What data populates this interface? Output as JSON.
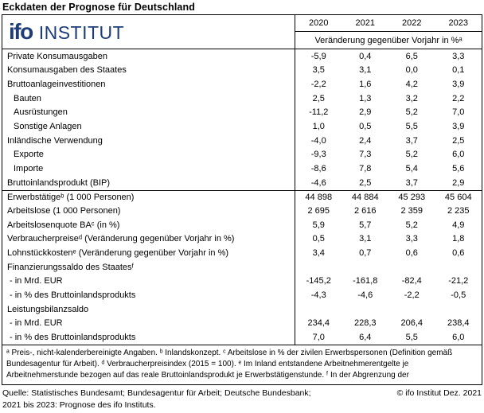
{
  "title": "Eckdaten der Prognose für Deutschland",
  "logo": {
    "brand": "ifo",
    "suffix": "INSTITUT"
  },
  "colors": {
    "logo_blue": "#1e3c78",
    "border": "#000000",
    "text": "#000000"
  },
  "table": {
    "years": [
      "2020",
      "2021",
      "2022",
      "2023"
    ],
    "unit_header": "Veränderung gegenüber Vorjahr in %ᵃ",
    "rows": [
      {
        "label": "Private Konsumausgaben",
        "values": [
          "-5,9",
          "0,4",
          "6,5",
          "3,3"
        ]
      },
      {
        "label": "Konsumausgaben des Staates",
        "values": [
          "3,5",
          "3,1",
          "0,0",
          "0,1"
        ]
      },
      {
        "label": "Bruttoanlageinvestitionen",
        "values": [
          "-2,2",
          "1,6",
          "4,2",
          "3,9"
        ]
      },
      {
        "label": "Bauten",
        "indent": true,
        "values": [
          "2,5",
          "1,3",
          "3,2",
          "2,2"
        ]
      },
      {
        "label": "Ausrüstungen",
        "indent": true,
        "values": [
          "-11,2",
          "2,9",
          "5,2",
          "7,0"
        ]
      },
      {
        "label": "Sonstige Anlagen",
        "indent": true,
        "values": [
          "1,0",
          "0,5",
          "5,5",
          "3,9"
        ]
      },
      {
        "label": "Inländische Verwendung",
        "values": [
          "-4,0",
          "2,4",
          "3,7",
          "2,5"
        ]
      },
      {
        "label": "Exporte",
        "indent": true,
        "values": [
          "-9,3",
          "7,3",
          "5,2",
          "6,0"
        ]
      },
      {
        "label": "Importe",
        "indent": true,
        "values": [
          "-8,6",
          "7,8",
          "5,4",
          "5,6"
        ]
      },
      {
        "label": "Bruttoinlandsprodukt (BIP)",
        "values": [
          "-4,6",
          "2,5",
          "3,7",
          "2,9"
        ]
      },
      {
        "label": "Erwerbstätigeᵇ (1 000 Personen)",
        "topline": true,
        "values": [
          "44 898",
          "44 884",
          "45 293",
          "45 604"
        ]
      },
      {
        "label": "Arbeitslose (1 000 Personen)",
        "values": [
          "2 695",
          "2 616",
          "2 359",
          "2 235"
        ]
      },
      {
        "label": "Arbeitslosenquote BAᶜ (in %)",
        "values": [
          "5,9",
          "5,7",
          "5,2",
          "4,9"
        ]
      },
      {
        "label": "Verbraucherpreiseᵈ (Veränderung gegenüber Vorjahr in %)",
        "values": [
          "0,5",
          "3,1",
          "3,3",
          "1,8"
        ]
      },
      {
        "label": "Lohnstückkostenᵉ (Veränderung gegenüber Vorjahr in %)",
        "values": [
          "3,4",
          "0,7",
          "0,6",
          "0,6"
        ]
      },
      {
        "label": "Finanzierungssaldo des Staatesᶠ",
        "values": [
          "",
          "",
          "",
          ""
        ]
      },
      {
        "label": "- in Mrd. EUR",
        "dash": true,
        "values": [
          "-145,2",
          "-161,8",
          "-82,4",
          "-21,2"
        ]
      },
      {
        "label": "- in % des Bruttoinlandsprodukts",
        "dash": true,
        "values": [
          "-4,3",
          "-4,6",
          "-2,2",
          "-0,5"
        ]
      },
      {
        "label": "Leistungsbilanzsaldo",
        "values": [
          "",
          "",
          "",
          ""
        ]
      },
      {
        "label": "- in Mrd. EUR",
        "dash": true,
        "values": [
          "234,4",
          "228,3",
          "206,4",
          "238,4"
        ]
      },
      {
        "label": "- in % des Bruttoinlandsprodukts",
        "dash": true,
        "values": [
          "7,0",
          "6,4",
          "5,5",
          "6,0"
        ]
      }
    ]
  },
  "footnotes": [
    "ᵃ Preis-, nicht-kalenderbereinigte Angaben. ᵇ Inlandskonzept. ᶜ Arbeitslose in % der zivilen Erwerbspersonen (Definition gemäß",
    "Bundesagentur für Arbeit). ᵈ Verbraucherpreisindex (2015 = 100). ᵉ Im Inland entstandene Arbeitnehmerentgelte je",
    "Arbeitnehmerstunde bezogen auf das reale Bruttoinlandsprodukt je Erwerbstätigenstunde. ᶠ In der Abgrenzung der"
  ],
  "source": {
    "line1": "Quelle: Statistisches Bundesamt; Bundesagentur für Arbeit; Deutsche Bundesbank;",
    "copyright": "© ifo Institut Dez. 2021",
    "line2": "2021 bis 2023: Prognose des ifo Instituts."
  }
}
